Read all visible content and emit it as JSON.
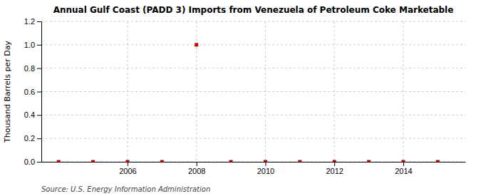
{
  "chart_data": {
    "type": "scatter",
    "title": "Annual Gulf Coast (PADD 3) Imports from Venezuela of Petroleum Coke Marketable",
    "ylabel": "Thousand Barrels per Day",
    "annotations": [
      "Source: U.S. Energy Information Administration"
    ],
    "x": [
      2004,
      2005,
      2006,
      2007,
      2008,
      2009,
      2010,
      2011,
      2012,
      2013,
      2014,
      2015
    ],
    "values": [
      0.0,
      0.0,
      0.0,
      0.0,
      1.0,
      0.0,
      0.0,
      0.0,
      0.0,
      0.0,
      0.0,
      0.0
    ],
    "color": "#cc0000",
    "marker": "square",
    "xlim": [
      2003.5,
      2015.8
    ],
    "xticks": [
      2006,
      2008,
      2010,
      2012,
      2014
    ],
    "ylim": [
      0.0,
      1.2
    ],
    "yticks": [
      {
        "value": 0.0,
        "label": "0.0"
      },
      0.2,
      0.4,
      0.6,
      0.8,
      {
        "value": 1.0,
        "label": "1.0"
      },
      1.2
    ],
    "grid": true
  }
}
